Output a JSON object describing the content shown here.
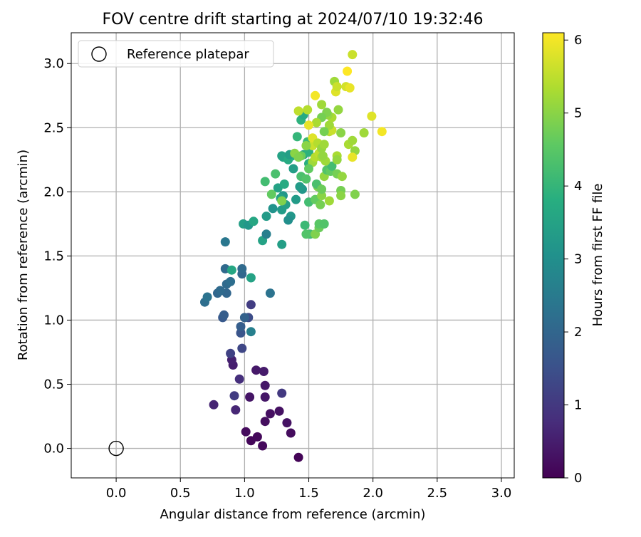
{
  "chart_data": {
    "type": "scatter",
    "title": "FOV centre drift starting at 2024/07/10 19:32:46",
    "xlabel": "Angular distance from reference (arcmin)",
    "ylabel": "Rotation from reference (arcmin)",
    "xlim": [
      -0.35,
      3.1
    ],
    "ylim": [
      -0.23,
      3.24
    ],
    "xticks": [
      0.0,
      0.5,
      1.0,
      1.5,
      2.0,
      2.5,
      3.0
    ],
    "yticks": [
      0.0,
      0.5,
      1.0,
      1.5,
      2.0,
      2.5,
      3.0
    ],
    "grid": true,
    "legend": {
      "placement": "upper-left",
      "entries": [
        "Reference platepar"
      ]
    },
    "reference_point": {
      "x": 0.0,
      "y": 0.0
    },
    "colorbar": {
      "label": "Hours from first FF file",
      "min": 0,
      "max": 6.1,
      "ticks": [
        0,
        1,
        2,
        3,
        4,
        5,
        6
      ],
      "colormap": "viridis"
    },
    "series": [
      {
        "name": "Reference platepar",
        "points": [
          [
            0.0,
            0.0
          ]
        ]
      },
      {
        "points": [
          {
            "x": 1.42,
            "y": -0.07,
            "c": 0.05
          },
          {
            "x": 1.05,
            "y": 0.06,
            "c": 0.1
          },
          {
            "x": 1.1,
            "y": 0.09,
            "c": 0.12
          },
          {
            "x": 1.14,
            "y": 0.02,
            "c": 0.15
          },
          {
            "x": 1.01,
            "y": 0.13,
            "c": 0.18
          },
          {
            "x": 1.36,
            "y": 0.12,
            "c": 0.2
          },
          {
            "x": 1.16,
            "y": 0.21,
            "c": 0.22
          },
          {
            "x": 1.2,
            "y": 0.27,
            "c": 0.25
          },
          {
            "x": 1.27,
            "y": 0.29,
            "c": 0.28
          },
          {
            "x": 1.33,
            "y": 0.2,
            "c": 0.3
          },
          {
            "x": 1.04,
            "y": 0.4,
            "c": 0.35
          },
          {
            "x": 1.16,
            "y": 0.4,
            "c": 0.38
          },
          {
            "x": 1.16,
            "y": 0.49,
            "c": 0.4
          },
          {
            "x": 1.09,
            "y": 0.61,
            "c": 0.42
          },
          {
            "x": 1.15,
            "y": 0.6,
            "c": 0.45
          },
          {
            "x": 0.91,
            "y": 0.65,
            "c": 0.5
          },
          {
            "x": 0.9,
            "y": 0.69,
            "c": 0.55
          },
          {
            "x": 0.76,
            "y": 0.34,
            "c": 0.6
          },
          {
            "x": 0.93,
            "y": 0.3,
            "c": 0.65
          },
          {
            "x": 0.96,
            "y": 0.54,
            "c": 0.8
          },
          {
            "x": 1.29,
            "y": 0.43,
            "c": 1.0
          },
          {
            "x": 0.92,
            "y": 0.41,
            "c": 1.05
          },
          {
            "x": 0.89,
            "y": 0.74,
            "c": 1.2
          },
          {
            "x": 0.98,
            "y": 0.78,
            "c": 1.3
          },
          {
            "x": 1.05,
            "y": 1.12,
            "c": 1.1
          },
          {
            "x": 1.03,
            "y": 1.02,
            "c": 1.4
          },
          {
            "x": 0.97,
            "y": 0.9,
            "c": 1.6
          },
          {
            "x": 0.97,
            "y": 0.95,
            "c": 1.8
          },
          {
            "x": 1.0,
            "y": 1.02,
            "c": 1.9
          },
          {
            "x": 0.83,
            "y": 1.02,
            "c": 1.7
          },
          {
            "x": 0.84,
            "y": 1.04,
            "c": 1.8
          },
          {
            "x": 0.79,
            "y": 1.21,
            "c": 2.0
          },
          {
            "x": 0.86,
            "y": 1.21,
            "c": 2.0
          },
          {
            "x": 0.81,
            "y": 1.23,
            "c": 2.1
          },
          {
            "x": 0.69,
            "y": 1.14,
            "c": 2.2
          },
          {
            "x": 0.71,
            "y": 1.18,
            "c": 2.3
          },
          {
            "x": 0.86,
            "y": 1.28,
            "c": 2.1
          },
          {
            "x": 0.89,
            "y": 1.3,
            "c": 2.2
          },
          {
            "x": 0.85,
            "y": 1.4,
            "c": 2.1
          },
          {
            "x": 0.98,
            "y": 1.36,
            "c": 2.0
          },
          {
            "x": 0.98,
            "y": 1.4,
            "c": 2.1
          },
          {
            "x": 1.2,
            "y": 1.21,
            "c": 2.3
          },
          {
            "x": 1.05,
            "y": 0.91,
            "c": 2.6
          },
          {
            "x": 0.9,
            "y": 1.39,
            "c": 3.6
          },
          {
            "x": 0.85,
            "y": 1.61,
            "c": 2.4
          },
          {
            "x": 1.05,
            "y": 1.33,
            "c": 3.5
          },
          {
            "x": 0.99,
            "y": 1.75,
            "c": 3.4
          },
          {
            "x": 1.03,
            "y": 1.74,
            "c": 3.2
          },
          {
            "x": 1.07,
            "y": 1.77,
            "c": 3.6
          },
          {
            "x": 1.14,
            "y": 1.62,
            "c": 3.5
          },
          {
            "x": 1.17,
            "y": 1.67,
            "c": 2.6
          },
          {
            "x": 1.29,
            "y": 1.59,
            "c": 3.4
          },
          {
            "x": 1.17,
            "y": 1.81,
            "c": 3.3
          },
          {
            "x": 1.22,
            "y": 1.87,
            "c": 3.1
          },
          {
            "x": 1.29,
            "y": 1.86,
            "c": 3.3
          },
          {
            "x": 1.32,
            "y": 1.9,
            "c": 3.4
          },
          {
            "x": 1.36,
            "y": 1.81,
            "c": 3.2
          },
          {
            "x": 1.4,
            "y": 1.94,
            "c": 3.3
          },
          {
            "x": 1.34,
            "y": 1.78,
            "c": 3.0
          },
          {
            "x": 1.3,
            "y": 1.97,
            "c": 3.2
          },
          {
            "x": 1.28,
            "y": 1.95,
            "c": 3.5
          },
          {
            "x": 1.26,
            "y": 2.03,
            "c": 3.5
          },
          {
            "x": 1.31,
            "y": 2.06,
            "c": 3.7
          },
          {
            "x": 1.24,
            "y": 2.14,
            "c": 4.3
          },
          {
            "x": 1.16,
            "y": 2.08,
            "c": 4.2
          },
          {
            "x": 1.21,
            "y": 1.98,
            "c": 4.6
          },
          {
            "x": 1.29,
            "y": 1.93,
            "c": 4.9
          },
          {
            "x": 1.45,
            "y": 2.02,
            "c": 3.2
          },
          {
            "x": 1.43,
            "y": 2.04,
            "c": 3.3
          },
          {
            "x": 1.38,
            "y": 2.18,
            "c": 3.4
          },
          {
            "x": 1.3,
            "y": 2.27,
            "c": 3.6
          },
          {
            "x": 1.29,
            "y": 2.28,
            "c": 3.5
          },
          {
            "x": 1.34,
            "y": 2.25,
            "c": 3.7
          },
          {
            "x": 1.37,
            "y": 2.28,
            "c": 3.8
          },
          {
            "x": 1.35,
            "y": 2.29,
            "c": 3.4
          },
          {
            "x": 1.41,
            "y": 2.43,
            "c": 4.0
          },
          {
            "x": 1.44,
            "y": 2.56,
            "c": 3.9
          },
          {
            "x": 1.46,
            "y": 2.6,
            "c": 3.7
          },
          {
            "x": 1.46,
            "y": 2.29,
            "c": 3.6
          },
          {
            "x": 1.5,
            "y": 2.22,
            "c": 3.8
          },
          {
            "x": 1.5,
            "y": 2.31,
            "c": 3.9
          },
          {
            "x": 1.49,
            "y": 2.39,
            "c": 4.1
          },
          {
            "x": 1.44,
            "y": 2.12,
            "c": 4.3
          },
          {
            "x": 1.48,
            "y": 2.1,
            "c": 4.4
          },
          {
            "x": 1.5,
            "y": 1.92,
            "c": 4.2
          },
          {
            "x": 1.47,
            "y": 1.74,
            "c": 4.1
          },
          {
            "x": 1.51,
            "y": 1.67,
            "c": 4.2
          },
          {
            "x": 1.48,
            "y": 1.67,
            "c": 4.4
          },
          {
            "x": 1.55,
            "y": 1.67,
            "c": 4.9
          },
          {
            "x": 1.58,
            "y": 1.72,
            "c": 4.7
          },
          {
            "x": 1.58,
            "y": 1.75,
            "c": 4.5
          },
          {
            "x": 1.62,
            "y": 1.75,
            "c": 4.4
          },
          {
            "x": 1.55,
            "y": 1.94,
            "c": 4.6
          },
          {
            "x": 1.59,
            "y": 1.9,
            "c": 4.8
          },
          {
            "x": 1.6,
            "y": 1.97,
            "c": 5.0
          },
          {
            "x": 1.57,
            "y": 2.04,
            "c": 4.9
          },
          {
            "x": 1.56,
            "y": 2.06,
            "c": 4.3
          },
          {
            "x": 1.6,
            "y": 2.02,
            "c": 4.7
          },
          {
            "x": 1.62,
            "y": 2.12,
            "c": 5.1
          },
          {
            "x": 1.66,
            "y": 1.93,
            "c": 5.2
          },
          {
            "x": 1.64,
            "y": 2.17,
            "c": 4.4
          },
          {
            "x": 1.67,
            "y": 2.16,
            "c": 4.6
          },
          {
            "x": 1.68,
            "y": 2.2,
            "c": 4.2
          },
          {
            "x": 1.72,
            "y": 2.14,
            "c": 4.8
          },
          {
            "x": 1.76,
            "y": 2.12,
            "c": 5.1
          },
          {
            "x": 1.75,
            "y": 2.01,
            "c": 4.8
          },
          {
            "x": 1.75,
            "y": 1.97,
            "c": 5.0
          },
          {
            "x": 1.86,
            "y": 1.98,
            "c": 4.9
          },
          {
            "x": 1.53,
            "y": 2.23,
            "c": 5.2
          },
          {
            "x": 1.55,
            "y": 2.27,
            "c": 5.4
          },
          {
            "x": 1.58,
            "y": 2.3,
            "c": 5.5
          },
          {
            "x": 1.6,
            "y": 2.27,
            "c": 5.3
          },
          {
            "x": 1.63,
            "y": 2.24,
            "c": 5.2
          },
          {
            "x": 1.61,
            "y": 2.28,
            "c": 5.1
          },
          {
            "x": 1.53,
            "y": 2.36,
            "c": 5.6
          },
          {
            "x": 1.53,
            "y": 2.42,
            "c": 5.8
          },
          {
            "x": 1.57,
            "y": 2.38,
            "c": 5.4
          },
          {
            "x": 1.6,
            "y": 2.34,
            "c": 5.1
          },
          {
            "x": 1.62,
            "y": 2.37,
            "c": 5.2
          },
          {
            "x": 1.72,
            "y": 2.28,
            "c": 5.3
          },
          {
            "x": 1.72,
            "y": 2.25,
            "c": 5.1
          },
          {
            "x": 1.81,
            "y": 2.37,
            "c": 5.3
          },
          {
            "x": 1.84,
            "y": 2.4,
            "c": 5.2
          },
          {
            "x": 1.86,
            "y": 2.32,
            "c": 5.1
          },
          {
            "x": 1.84,
            "y": 2.27,
            "c": 5.9
          },
          {
            "x": 1.93,
            "y": 2.46,
            "c": 5.2
          },
          {
            "x": 2.07,
            "y": 2.47,
            "c": 6.0
          },
          {
            "x": 1.99,
            "y": 2.59,
            "c": 5.8
          },
          {
            "x": 1.66,
            "y": 2.47,
            "c": 5.4
          },
          {
            "x": 1.68,
            "y": 2.48,
            "c": 5.6
          },
          {
            "x": 1.66,
            "y": 2.52,
            "c": 5.2
          },
          {
            "x": 1.68,
            "y": 2.58,
            "c": 5.3
          },
          {
            "x": 1.65,
            "y": 2.6,
            "c": 5.1
          },
          {
            "x": 1.64,
            "y": 2.62,
            "c": 4.9
          },
          {
            "x": 1.6,
            "y": 2.68,
            "c": 5.2
          },
          {
            "x": 1.6,
            "y": 2.58,
            "c": 4.8
          },
          {
            "x": 1.62,
            "y": 2.47,
            "c": 4.8
          },
          {
            "x": 1.75,
            "y": 2.46,
            "c": 5.0
          },
          {
            "x": 1.73,
            "y": 2.64,
            "c": 5.1
          },
          {
            "x": 1.56,
            "y": 2.54,
            "c": 5.3
          },
          {
            "x": 1.5,
            "y": 2.52,
            "c": 5.9
          },
          {
            "x": 1.49,
            "y": 2.64,
            "c": 5.4
          },
          {
            "x": 1.42,
            "y": 2.63,
            "c": 5.5
          },
          {
            "x": 1.55,
            "y": 2.75,
            "c": 6.0
          },
          {
            "x": 1.71,
            "y": 2.78,
            "c": 5.8
          },
          {
            "x": 1.7,
            "y": 2.86,
            "c": 5.2
          },
          {
            "x": 1.72,
            "y": 2.82,
            "c": 5.6
          },
          {
            "x": 1.79,
            "y": 2.82,
            "c": 5.7
          },
          {
            "x": 1.82,
            "y": 2.81,
            "c": 5.9
          },
          {
            "x": 1.8,
            "y": 2.94,
            "c": 6.1
          },
          {
            "x": 1.84,
            "y": 3.07,
            "c": 5.6
          },
          {
            "x": 1.48,
            "y": 2.36,
            "c": 5.0
          },
          {
            "x": 1.5,
            "y": 2.18,
            "c": 4.6
          },
          {
            "x": 1.44,
            "y": 2.28,
            "c": 4.7
          },
          {
            "x": 1.39,
            "y": 2.3,
            "c": 5.0
          },
          {
            "x": 1.42,
            "y": 2.27,
            "c": 4.9
          }
        ]
      }
    ]
  }
}
